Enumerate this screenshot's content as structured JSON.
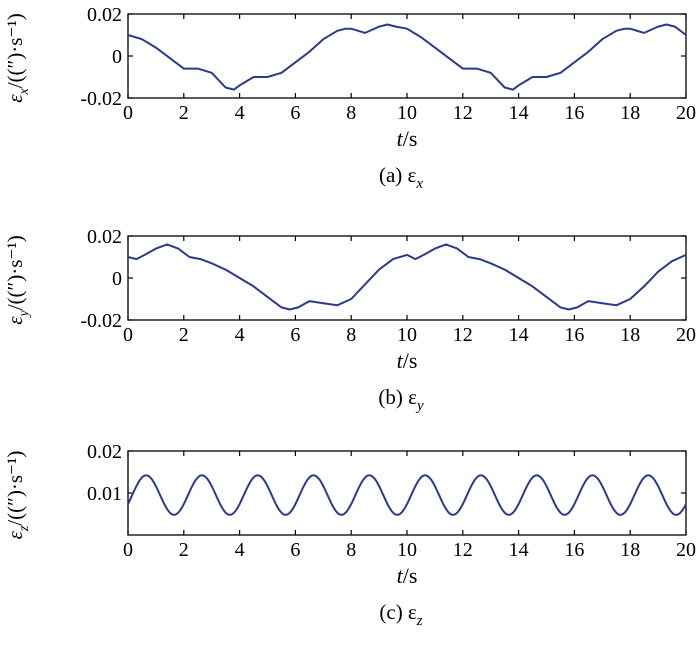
{
  "chart_data": [
    {
      "type": "line",
      "panel": "a",
      "caption": "(a) εx",
      "caption_main": "(a) ε",
      "caption_sub": "x",
      "ylabel_main": "ε",
      "ylabel_sub": "x",
      "ylabel_unit": "/((″)·s⁻¹)",
      "xlabel_main": "t",
      "xlabel_unit": "/s",
      "xlim": [
        0,
        20
      ],
      "ylim": [
        -0.02,
        0.02
      ],
      "xticks": [
        0,
        2,
        4,
        6,
        8,
        10,
        12,
        14,
        16,
        18,
        20
      ],
      "xtick_labels": [
        "0",
        "2",
        "4",
        "6",
        "8",
        "10",
        "12",
        "14",
        "16",
        "18",
        "20"
      ],
      "yticks": [
        -0.02,
        0,
        0.02
      ],
      "ytick_labels": [
        "-0.02",
        "0",
        "0.02"
      ],
      "grid": false,
      "series": [
        {
          "color": "#2b3a8c",
          "x": [
            0,
            0.5,
            1.0,
            1.5,
            2.0,
            2.5,
            3.0,
            3.5,
            3.8,
            4.0,
            4.5,
            5.0,
            5.5,
            6.0,
            6.5,
            7.0,
            7.5,
            7.8,
            8.0,
            8.5,
            9.0,
            9.3,
            9.6,
            10.0,
            10.5,
            11.0,
            11.5,
            12.0,
            12.5,
            13.0,
            13.5,
            13.8,
            14.0,
            14.5,
            15.0,
            15.5,
            16.0,
            16.5,
            17.0,
            17.5,
            17.8,
            18.0,
            18.5,
            19.0,
            19.3,
            19.6,
            20.0
          ],
          "y": [
            0.01,
            0.008,
            0.004,
            -0.001,
            -0.006,
            -0.006,
            -0.008,
            -0.015,
            -0.016,
            -0.014,
            -0.01,
            -0.01,
            -0.008,
            -0.003,
            0.002,
            0.008,
            0.012,
            0.013,
            0.013,
            0.011,
            0.014,
            0.015,
            0.014,
            0.013,
            0.009,
            0.004,
            -0.001,
            -0.006,
            -0.006,
            -0.008,
            -0.015,
            -0.016,
            -0.014,
            -0.01,
            -0.01,
            -0.008,
            -0.003,
            0.002,
            0.008,
            0.012,
            0.013,
            0.013,
            0.011,
            0.014,
            0.015,
            0.014,
            0.01
          ]
        }
      ]
    },
    {
      "type": "line",
      "panel": "b",
      "caption": "(b) εy",
      "caption_main": "(b) ε",
      "caption_sub": "y",
      "ylabel_main": "ε",
      "ylabel_sub": "y",
      "ylabel_unit": "/((″)·s⁻¹)",
      "xlabel_main": "t",
      "xlabel_unit": "/s",
      "xlim": [
        0,
        20
      ],
      "ylim": [
        -0.02,
        0.02
      ],
      "xticks": [
        0,
        2,
        4,
        6,
        8,
        10,
        12,
        14,
        16,
        18,
        20
      ],
      "xtick_labels": [
        "0",
        "2",
        "4",
        "6",
        "8",
        "10",
        "12",
        "14",
        "16",
        "18",
        "20"
      ],
      "yticks": [
        -0.02,
        0,
        0.02
      ],
      "ytick_labels": [
        "-0.02",
        "0",
        "0.02"
      ],
      "grid": false,
      "series": [
        {
          "color": "#2b3a8c",
          "x": [
            0,
            0.3,
            0.6,
            1.0,
            1.4,
            1.8,
            2.2,
            2.6,
            3.0,
            3.5,
            4.0,
            4.5,
            5.0,
            5.5,
            5.8,
            6.1,
            6.5,
            7.0,
            7.5,
            8.0,
            8.5,
            9.0,
            9.5,
            10.0,
            10.3,
            10.6,
            11.0,
            11.4,
            11.8,
            12.2,
            12.6,
            13.0,
            13.5,
            14.0,
            14.5,
            15.0,
            15.5,
            15.8,
            16.1,
            16.5,
            17.0,
            17.5,
            18.0,
            18.5,
            19.0,
            19.5,
            20.0
          ],
          "y": [
            0.01,
            0.009,
            0.011,
            0.014,
            0.016,
            0.014,
            0.01,
            0.009,
            0.007,
            0.004,
            0.0,
            -0.004,
            -0.009,
            -0.014,
            -0.015,
            -0.014,
            -0.011,
            -0.012,
            -0.013,
            -0.01,
            -0.003,
            0.004,
            0.009,
            0.011,
            0.009,
            0.011,
            0.014,
            0.016,
            0.014,
            0.01,
            0.009,
            0.007,
            0.004,
            0.0,
            -0.004,
            -0.009,
            -0.014,
            -0.015,
            -0.014,
            -0.011,
            -0.012,
            -0.013,
            -0.01,
            -0.004,
            0.003,
            0.008,
            0.011
          ]
        }
      ]
    },
    {
      "type": "line",
      "panel": "c",
      "caption": "(c) εz",
      "caption_main": "(c) ε",
      "caption_sub": "z",
      "ylabel_main": "ε",
      "ylabel_sub": "z",
      "ylabel_unit": "/((″)·s⁻¹)",
      "xlabel_main": "t",
      "xlabel_unit": "/s",
      "xlim": [
        0,
        20
      ],
      "ylim": [
        0,
        0.02
      ],
      "xticks": [
        0,
        2,
        4,
        6,
        8,
        10,
        12,
        14,
        16,
        18,
        20
      ],
      "xtick_labels": [
        "0",
        "2",
        "4",
        "6",
        "8",
        "10",
        "12",
        "14",
        "16",
        "18",
        "20"
      ],
      "yticks": [
        0.01,
        0.02
      ],
      "ytick_labels": [
        "0.01",
        "0.02"
      ],
      "grid": false,
      "series": [
        {
          "color": "#2b3a8c",
          "form": "periodic",
          "period": 2.0,
          "phase": 0.15,
          "mean": 0.0095,
          "amplitude": 0.0047
        }
      ]
    }
  ]
}
